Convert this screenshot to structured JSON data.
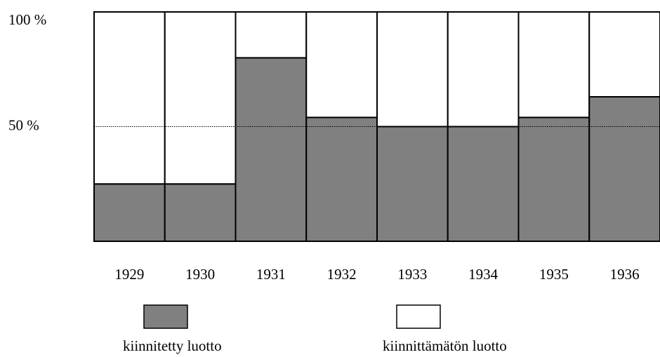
{
  "chart_data": {
    "type": "stacked_bar",
    "categories": [
      "1929",
      "1930",
      "1931",
      "1932",
      "1933",
      "1934",
      "1935",
      "1936"
    ],
    "series": [
      {
        "name": "kiinnitetty luotto",
        "color": "#808080",
        "values": [
          25,
          25,
          80,
          54,
          50,
          50,
          54,
          63
        ]
      },
      {
        "name": "kiinnittämätön luotto",
        "color": "#ffffff",
        "values": [
          75,
          75,
          20,
          46,
          50,
          50,
          46,
          37
        ]
      }
    ],
    "ylim": [
      0,
      100
    ],
    "yticks": [
      {
        "value": 50,
        "label": "50 %"
      },
      {
        "value": 100,
        "label": "100 %"
      }
    ],
    "grid": true
  }
}
